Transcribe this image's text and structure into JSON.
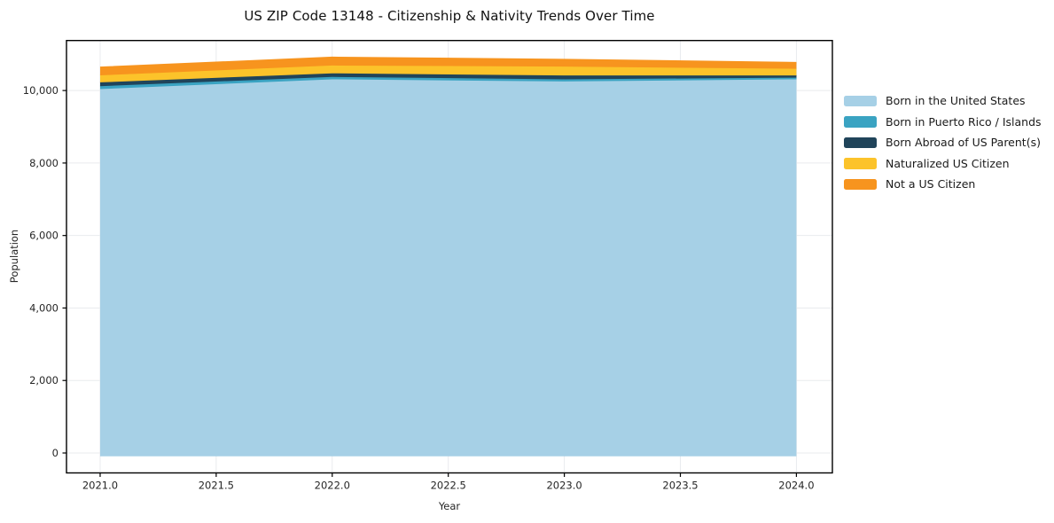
{
  "page": {
    "background": "#ffffff"
  },
  "chart_data": {
    "type": "area",
    "stacked": true,
    "title": "US ZIP Code 13148 - Citizenship & Nativity Trends Over Time",
    "xlabel": "Year",
    "ylabel": "Population",
    "x": [
      2021,
      2022,
      2023,
      2024
    ],
    "series": [
      {
        "name": "Born in the United States",
        "color": "#A6D0E6",
        "values": [
          10040,
          10310,
          10250,
          10310
        ]
      },
      {
        "name": "Born in Puerto Rico / Islands",
        "color": "#3AA3C2",
        "values": [
          80,
          65,
          60,
          45
        ]
      },
      {
        "name": "Born Abroad of US Parent(s)",
        "color": "#20445A",
        "values": [
          105,
          100,
          105,
          60
        ]
      },
      {
        "name": "Naturalized US Citizen",
        "color": "#FCC32A",
        "values": [
          195,
          215,
          245,
          185
        ]
      },
      {
        "name": "Not a US Citizen",
        "color": "#F7941E",
        "values": [
          215,
          220,
          190,
          165
        ]
      }
    ],
    "totals": [
      10635,
      10910,
      10850,
      10765
    ],
    "xlim": [
      2020.855,
      2024.155
    ],
    "ylim": [
      -550,
      11380
    ],
    "baseline": -90,
    "x_ticks": [
      2021.0,
      2021.5,
      2022.0,
      2022.5,
      2023.0,
      2023.5,
      2024.0
    ],
    "x_tick_labels": [
      "2021.0",
      "2021.5",
      "2022.0",
      "2022.5",
      "2023.0",
      "2023.5",
      "2024.0"
    ],
    "y_ticks": [
      0,
      2000,
      4000,
      6000,
      8000,
      10000
    ],
    "y_tick_labels": [
      "0",
      "2,000",
      "4,000",
      "6,000",
      "8,000",
      "10,000"
    ],
    "grid": true,
    "grid_color": "#e9ebee",
    "spine_color": "#000000",
    "tick_label_color": "#262626",
    "legend_position": "right"
  }
}
